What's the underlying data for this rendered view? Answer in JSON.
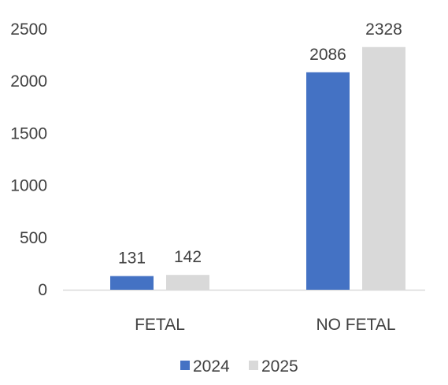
{
  "chart_data": {
    "type": "bar",
    "categories": [
      "FETAL",
      "NO FETAL"
    ],
    "series": [
      {
        "name": "2024",
        "values": [
          131,
          2086
        ],
        "color": "#4472C4"
      },
      {
        "name": "2025",
        "values": [
          142,
          2328
        ],
        "color": "#D9D9D9"
      }
    ],
    "data_labels": [
      [
        "131",
        "2086"
      ],
      [
        "142",
        "2328"
      ]
    ],
    "yticks": [
      "0",
      "500",
      "1000",
      "1500",
      "2000",
      "2500"
    ],
    "ylim": [
      0,
      2500
    ],
    "grid": false,
    "legend_position": "bottom",
    "axis_color": "#D9D9D9",
    "text_color": "#404040"
  }
}
